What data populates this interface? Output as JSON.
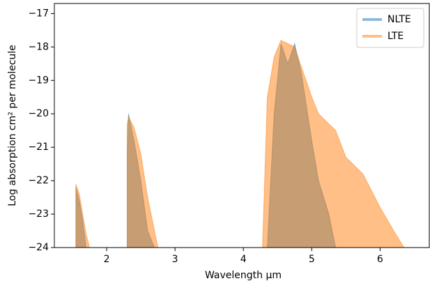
{
  "chart_data": {
    "type": "area",
    "xlabel": "Wavelength μm",
    "ylabel": "Log absorption cm² per molecule",
    "x": [
      1.5,
      1.55,
      1.6,
      1.65,
      1.7,
      1.75,
      1.8,
      2.2,
      2.3,
      2.32,
      2.4,
      2.5,
      2.6,
      2.7,
      2.75,
      2.8,
      4.2,
      4.28,
      4.35,
      4.45,
      4.55,
      4.65,
      4.75,
      4.85,
      5.0,
      5.1,
      5.25,
      5.35,
      5.5,
      5.75,
      6.0,
      6.2,
      6.35,
      6.4
    ],
    "series": [
      {
        "name": "NLTE",
        "color": "#1f77b4",
        "values": [
          null,
          -22.2,
          -22.6,
          -23.2,
          -24,
          null,
          null,
          null,
          -21.2,
          -20,
          -20.8,
          -22,
          -23.5,
          -24,
          null,
          null,
          null,
          null,
          -24,
          -20,
          -17.9,
          -18.5,
          -17.9,
          -18.8,
          -20.8,
          -22,
          -23,
          -24,
          null,
          null,
          null,
          null,
          null,
          null
        ]
      },
      {
        "name": "LTE",
        "color": "#ff7f0e",
        "values": [
          null,
          -22.1,
          -22.4,
          -23,
          -23.6,
          -24,
          null,
          null,
          -20.3,
          -20.1,
          -20.4,
          -21.2,
          -22.5,
          -23.5,
          -24,
          null,
          null,
          -24,
          -19.5,
          -18.3,
          -17.8,
          -17.9,
          -18,
          -18.6,
          -19.5,
          -20,
          -20.3,
          -20.5,
          -21.3,
          -21.8,
          -22.8,
          -23.5,
          -24,
          null
        ]
      }
    ],
    "xlim": [
      1.235,
      6.72
    ],
    "ylim": [
      -24,
      -16.7
    ],
    "xticks": [
      2,
      3,
      4,
      5,
      6
    ],
    "yticks": [
      {
        "value": -24,
        "label": "−24"
      },
      {
        "value": -23,
        "label": "−23"
      },
      {
        "value": -22,
        "label": "−22"
      },
      {
        "value": -21,
        "label": "−21"
      },
      {
        "value": -20,
        "label": "−20"
      },
      {
        "value": -19,
        "label": "−19"
      },
      {
        "value": -18,
        "label": "−18"
      },
      {
        "value": -17,
        "label": "−17"
      }
    ],
    "legend": "upper right",
    "alpha": 0.5
  }
}
